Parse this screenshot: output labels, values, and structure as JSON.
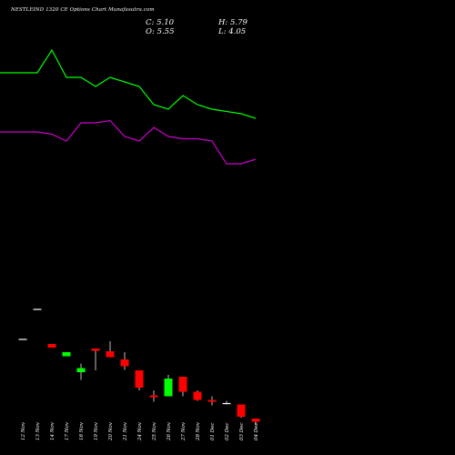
{
  "header": {
    "title": "NESTLEIND 1320  CE Options  Chart Munafasutra.com",
    "close_label": "C:",
    "close_value": "5.10",
    "open_label": "O:",
    "open_value": "5.55",
    "high_label": "H:",
    "high_value": "5.79",
    "low_label": "L:",
    "low_value": "4.05"
  },
  "chart_data": {
    "type": "candlestick",
    "categories": [
      "12 Nov",
      "13 Nov",
      "14 Nov",
      "17 Nov",
      "18 Nov",
      "19 Nov",
      "20 Nov",
      "21 Nov",
      "24 Nov",
      "25 Nov",
      "26 Nov",
      "27 Nov",
      "28 Nov",
      "01 Dec",
      "02 Dec",
      "03 Dec",
      "04 Dec"
    ],
    "candles": [
      {
        "date": "12 Nov",
        "open": 25.4,
        "high": 25.4,
        "low": 25.4,
        "close": 25.4
      },
      {
        "date": "13 Nov",
        "open": 32.0,
        "high": 32.0,
        "low": 32.0,
        "close": 32.0
      },
      {
        "date": "14 Nov",
        "open": 24.4,
        "high": 24.4,
        "low": 23.6,
        "close": 23.6
      },
      {
        "date": "17 Nov",
        "open": 21.7,
        "high": 22.6,
        "low": 21.7,
        "close": 22.6
      },
      {
        "date": "18 Nov",
        "open": 18.2,
        "high": 20.1,
        "low": 16.5,
        "close": 19.1
      },
      {
        "date": "19 Nov",
        "open": 23.4,
        "high": 23.4,
        "low": 18.6,
        "close": 22.9
      },
      {
        "date": "20 Nov",
        "open": 22.8,
        "high": 25.0,
        "low": 21.8,
        "close": 21.5
      },
      {
        "date": "21 Nov",
        "open": 21.0,
        "high": 22.6,
        "low": 18.7,
        "close": 19.5
      },
      {
        "date": "24 Nov",
        "open": 18.6,
        "high": 18.6,
        "low": 14.2,
        "close": 14.8
      },
      {
        "date": "25 Nov",
        "open": 13.1,
        "high": 14.2,
        "low": 11.7,
        "close": 12.9
      },
      {
        "date": "26 Nov",
        "open": 12.9,
        "high": 17.6,
        "low": 12.9,
        "close": 16.8
      },
      {
        "date": "27 Nov",
        "open": 17.2,
        "high": 17.2,
        "low": 12.9,
        "close": 13.9
      },
      {
        "date": "28 Nov",
        "open": 13.9,
        "high": 14.2,
        "low": 11.9,
        "close": 12.1
      },
      {
        "date": "01 Dec",
        "open": 12.1,
        "high": 12.9,
        "low": 10.9,
        "close": 11.7
      },
      {
        "date": "02 Dec",
        "open": 11.3,
        "high": 11.9,
        "low": 11.1,
        "close": 11.3
      },
      {
        "date": "03 Dec",
        "open": 11.1,
        "high": 11.1,
        "low": 8.2,
        "close": 8.4
      },
      {
        "date": "04 Dec",
        "open": 8.0,
        "high": 8.0,
        "low": 6.7,
        "close": 7.3
      }
    ],
    "overlay_lines": [
      {
        "color": "#00ff00",
        "values": [
          84,
          84,
          89,
          83,
          83,
          81,
          83,
          82,
          81,
          77,
          76,
          79,
          77,
          76,
          75.5,
          75,
          74
        ]
      },
      {
        "color": "#cc00cc",
        "values": [
          71,
          71,
          70.5,
          69,
          73,
          73,
          73.5,
          70,
          69,
          72,
          70,
          69.5,
          69.5,
          69,
          64,
          64,
          65
        ]
      }
    ],
    "ylim": [
      0,
      100
    ],
    "grid": false,
    "colors": {
      "up": "#00ff00",
      "down": "#ff0000",
      "wick": "#bbbbbb",
      "doji": "#ffffff"
    }
  }
}
